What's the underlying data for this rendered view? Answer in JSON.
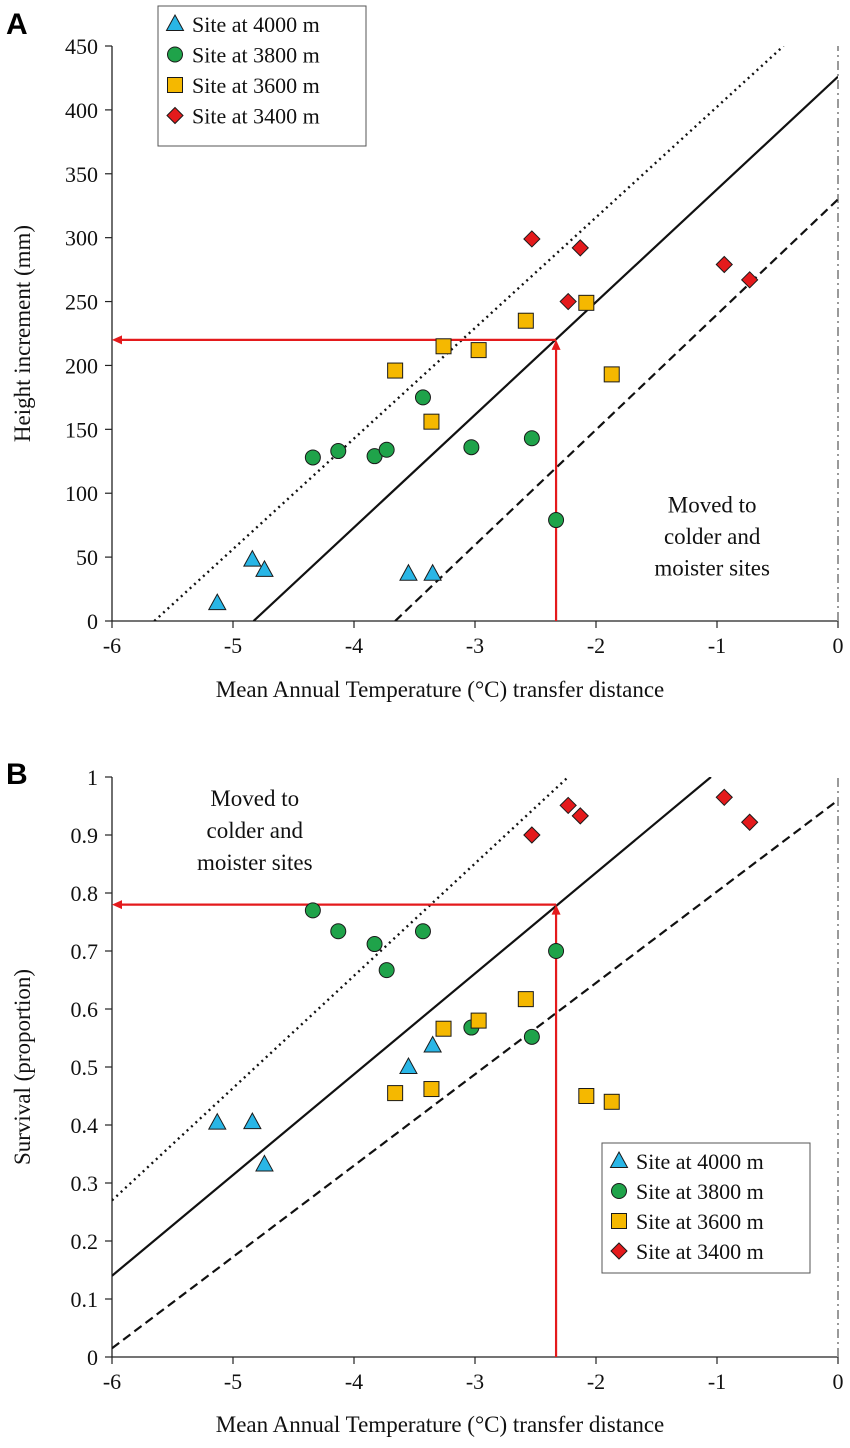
{
  "figure": {
    "panels": [
      "A",
      "B"
    ]
  },
  "chart_data": [
    {
      "type": "scatter",
      "panel": "A",
      "xlabel": "Mean Annual Temperature (°C) transfer distance",
      "ylabel": "Height increment (mm)",
      "xlim": [
        -6,
        0
      ],
      "ylim": [
        0,
        450
      ],
      "xticks": [
        -6,
        -5,
        -4,
        -3,
        -2,
        -1,
        0
      ],
      "yticks": [
        0,
        50,
        100,
        150,
        200,
        250,
        300,
        350,
        400,
        450
      ],
      "legend_position": "top-left",
      "annotation": [
        "Moved to",
        "colder and",
        "moister sites"
      ],
      "annotation_anchor": {
        "x": -1.04,
        "y": 85
      },
      "series": [
        {
          "name": "Site at 4000 m",
          "marker": "triangle",
          "color": "#29b6e6",
          "points": [
            [
              -5.13,
              14
            ],
            [
              -4.84,
              48
            ],
            [
              -4.74,
              40
            ],
            [
              -3.55,
              37
            ],
            [
              -3.35,
              37
            ]
          ]
        },
        {
          "name": "Site at 3800 m",
          "marker": "circle",
          "color": "#1fa34a",
          "points": [
            [
              -4.34,
              128
            ],
            [
              -4.13,
              133
            ],
            [
              -3.83,
              129
            ],
            [
              -3.73,
              134
            ],
            [
              -3.43,
              175
            ],
            [
              -3.03,
              136
            ],
            [
              -2.53,
              143
            ],
            [
              -2.33,
              79
            ]
          ]
        },
        {
          "name": "Site at 3600 m",
          "marker": "square",
          "color": "#f5b800",
          "points": [
            [
              -3.66,
              196
            ],
            [
              -3.36,
              156
            ],
            [
              -3.26,
              215
            ],
            [
              -2.97,
              212
            ],
            [
              -2.58,
              235
            ],
            [
              -2.08,
              249
            ],
            [
              -1.87,
              193
            ]
          ]
        },
        {
          "name": "Site at 3400 m",
          "marker": "diamond",
          "color": "#e41a1c",
          "points": [
            [
              -2.53,
              299
            ],
            [
              -2.23,
              250
            ],
            [
              -2.13,
              292
            ],
            [
              -0.94,
              279
            ],
            [
              -0.73,
              267
            ]
          ]
        }
      ],
      "lines": [
        {
          "style": "dotted",
          "from": [
            -5.65,
            0
          ],
          "to": [
            -0.45,
            450
          ]
        },
        {
          "style": "solid",
          "from": [
            -4.83,
            0
          ],
          "to": [
            0,
            426
          ]
        },
        {
          "style": "dashed",
          "from": [
            -3.66,
            0
          ],
          "to": [
            0,
            330
          ]
        }
      ],
      "marker_lines": {
        "x": -2.33,
        "y": 220,
        "color": "#e41a1c"
      },
      "vline_zero": {
        "x": 0,
        "style": "dashdot"
      }
    },
    {
      "type": "scatter",
      "panel": "B",
      "xlabel": "Mean Annual Temperature (°C) transfer distance",
      "ylabel": "Survival (proportion)",
      "xlim": [
        -6,
        0
      ],
      "ylim": [
        0,
        1
      ],
      "xticks": [
        -6,
        -5,
        -4,
        -3,
        -2,
        -1,
        0
      ],
      "yticks": [
        0,
        0.1,
        0.2,
        0.3,
        0.4,
        0.5,
        0.6,
        0.7,
        0.8,
        0.9,
        1
      ],
      "legend_position": "bottom-right",
      "annotation": [
        "Moved to",
        "colder and",
        "moister sites"
      ],
      "annotation_anchor": {
        "x": -4.82,
        "y": 0.95
      },
      "series": [
        {
          "name": "Site at 4000 m",
          "marker": "triangle",
          "color": "#29b6e6",
          "points": [
            [
              -5.13,
              0.404
            ],
            [
              -4.84,
              0.405
            ],
            [
              -4.74,
              0.332
            ],
            [
              -3.55,
              0.5
            ],
            [
              -3.35,
              0.537
            ]
          ]
        },
        {
          "name": "Site at 3800 m",
          "marker": "circle",
          "color": "#1fa34a",
          "points": [
            [
              -4.34,
              0.77
            ],
            [
              -4.13,
              0.734
            ],
            [
              -3.83,
              0.712
            ],
            [
              -3.73,
              0.667
            ],
            [
              -3.43,
              0.734
            ],
            [
              -3.03,
              0.568
            ],
            [
              -2.53,
              0.552
            ],
            [
              -2.33,
              0.7
            ]
          ]
        },
        {
          "name": "Site at 3600 m",
          "marker": "square",
          "color": "#f5b800",
          "points": [
            [
              -3.66,
              0.455
            ],
            [
              -3.36,
              0.462
            ],
            [
              -3.26,
              0.566
            ],
            [
              -2.97,
              0.58
            ],
            [
              -2.58,
              0.617
            ],
            [
              -2.08,
              0.45
            ],
            [
              -1.87,
              0.44
            ]
          ]
        },
        {
          "name": "Site at 3400 m",
          "marker": "diamond",
          "color": "#e41a1c",
          "points": [
            [
              -2.53,
              0.9
            ],
            [
              -2.23,
              0.951
            ],
            [
              -2.13,
              0.933
            ],
            [
              -0.94,
              0.965
            ],
            [
              -0.73,
              0.922
            ]
          ]
        }
      ],
      "lines": [
        {
          "style": "dotted",
          "from": [
            -6,
            0.27
          ],
          "to": [
            -2.23,
            1.0
          ]
        },
        {
          "style": "solid",
          "from": [
            -6,
            0.14
          ],
          "to": [
            -1.05,
            1.0
          ]
        },
        {
          "style": "dashed",
          "from": [
            -6,
            0.015
          ],
          "to": [
            0,
            0.96
          ]
        }
      ],
      "marker_lines": {
        "x": -2.33,
        "y": 0.78,
        "color": "#e41a1c"
      },
      "vline_zero": {
        "x": 0,
        "style": "dashdot"
      }
    }
  ]
}
